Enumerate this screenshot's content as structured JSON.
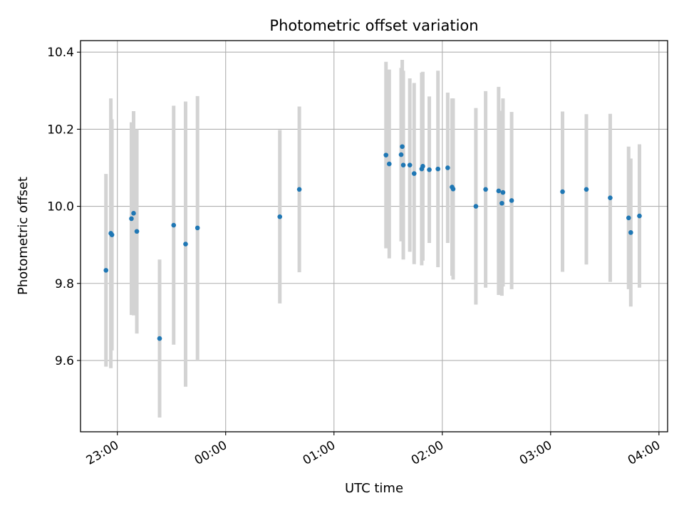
{
  "chart_data": {
    "type": "scatter",
    "title": "Photometric offset variation",
    "xlabel": "UTC time",
    "ylabel": "Photometric offset",
    "x_unit": "UTC time, hours after 00:00 (negative = before midnight)",
    "xlim": [
      -1.34,
      4.08
    ],
    "ylim": [
      9.415,
      10.43
    ],
    "x_ticks": [
      {
        "value": -1.0,
        "label": "23:00"
      },
      {
        "value": 0.0,
        "label": "00:00"
      },
      {
        "value": 1.0,
        "label": "01:00"
      },
      {
        "value": 2.0,
        "label": "02:00"
      },
      {
        "value": 3.0,
        "label": "03:00"
      },
      {
        "value": 4.0,
        "label": "04:00"
      }
    ],
    "y_ticks": [
      {
        "value": 9.6,
        "label": "9.6"
      },
      {
        "value": 9.8,
        "label": "9.8"
      },
      {
        "value": 10.0,
        "label": "10.0"
      },
      {
        "value": 10.2,
        "label": "10.2"
      },
      {
        "value": 10.4,
        "label": "10.4"
      }
    ],
    "grid": true,
    "marker_color": "#1f77b4",
    "errorbar_color": "#d3d3d3",
    "points": [
      {
        "x": -1.105,
        "y": 9.834,
        "err": 0.25
      },
      {
        "x": -1.06,
        "y": 9.93,
        "err": 0.35
      },
      {
        "x": -1.05,
        "y": 9.926,
        "err": 0.3
      },
      {
        "x": -0.87,
        "y": 9.968,
        "err": 0.25
      },
      {
        "x": -0.85,
        "y": 9.982,
        "err": 0.265
      },
      {
        "x": -0.82,
        "y": 9.935,
        "err": 0.265
      },
      {
        "x": -0.61,
        "y": 9.657,
        "err": 0.205
      },
      {
        "x": -0.48,
        "y": 9.951,
        "err": 0.31
      },
      {
        "x": -0.37,
        "y": 9.902,
        "err": 0.37
      },
      {
        "x": -0.26,
        "y": 9.944,
        "err": 0.342
      },
      {
        "x": 0.5,
        "y": 9.973,
        "err": 0.225
      },
      {
        "x": 0.68,
        "y": 10.044,
        "err": 0.215
      },
      {
        "x": 1.48,
        "y": 10.133,
        "err": 0.242
      },
      {
        "x": 1.51,
        "y": 10.11,
        "err": 0.245
      },
      {
        "x": 1.62,
        "y": 10.134,
        "err": 0.225
      },
      {
        "x": 1.63,
        "y": 10.155,
        "err": 0.225
      },
      {
        "x": 1.64,
        "y": 10.107,
        "err": 0.245
      },
      {
        "x": 1.7,
        "y": 10.107,
        "err": 0.225
      },
      {
        "x": 1.74,
        "y": 10.085,
        "err": 0.235
      },
      {
        "x": 1.81,
        "y": 10.097,
        "err": 0.25
      },
      {
        "x": 1.82,
        "y": 10.104,
        "err": 0.245
      },
      {
        "x": 1.88,
        "y": 10.095,
        "err": 0.19
      },
      {
        "x": 1.96,
        "y": 10.097,
        "err": 0.255
      },
      {
        "x": 2.05,
        "y": 10.1,
        "err": 0.195
      },
      {
        "x": 2.09,
        "y": 10.05,
        "err": 0.23
      },
      {
        "x": 2.1,
        "y": 10.045,
        "err": 0.235
      },
      {
        "x": 2.31,
        "y": 10.0,
        "err": 0.255
      },
      {
        "x": 2.4,
        "y": 10.044,
        "err": 0.255
      },
      {
        "x": 2.52,
        "y": 10.04,
        "err": 0.27
      },
      {
        "x": 2.55,
        "y": 10.008,
        "err": 0.24
      },
      {
        "x": 2.56,
        "y": 10.036,
        "err": 0.244
      },
      {
        "x": 2.64,
        "y": 10.015,
        "err": 0.23
      },
      {
        "x": 3.11,
        "y": 10.038,
        "err": 0.208
      },
      {
        "x": 3.33,
        "y": 10.044,
        "err": 0.195
      },
      {
        "x": 3.55,
        "y": 10.022,
        "err": 0.218
      },
      {
        "x": 3.72,
        "y": 9.97,
        "err": 0.185
      },
      {
        "x": 3.74,
        "y": 9.932,
        "err": 0.192
      },
      {
        "x": 3.82,
        "y": 9.975,
        "err": 0.186
      }
    ]
  }
}
